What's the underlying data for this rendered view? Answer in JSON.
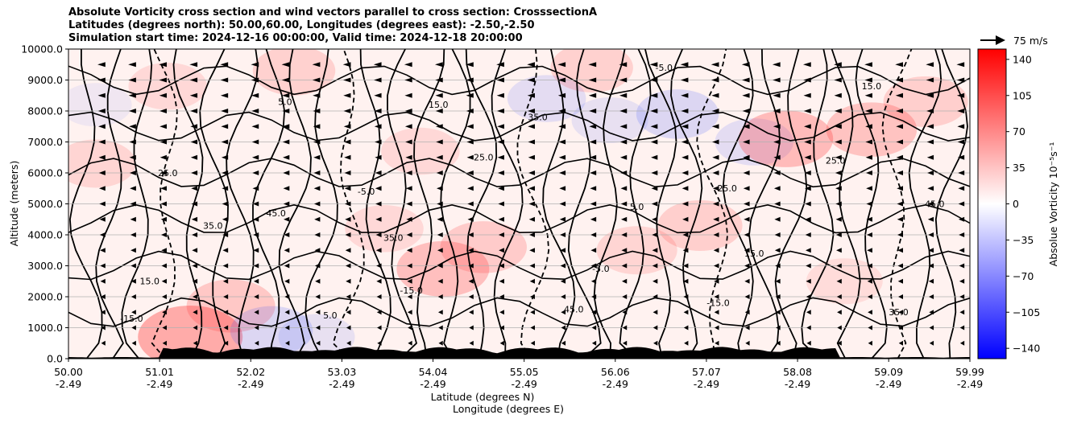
{
  "title_lines": [
    "Absolute Vorticity cross section and wind vectors parallel to cross section: CrosssectionA",
    "Latitudes (degrees north): 50.00,60.00, Longitudes (degrees east): -2.50,-2.50",
    "Simulation start time: 2024-12-16 00:00:00, Valid time: 2024-12-18 20:00:00"
  ],
  "chart_data": {
    "type": "heatmap",
    "ylabel": "Altitude (meters)",
    "xlabel_lines": [
      "Latitude (degrees N)",
      "Longitude (degrees E)"
    ],
    "ylim": [
      0,
      10000
    ],
    "y_ticks": [
      0,
      1000,
      2000,
      3000,
      4000,
      5000,
      6000,
      7000,
      8000,
      9000,
      10000
    ],
    "y_tick_labels": [
      "0.0",
      "1000.0",
      "2000.0",
      "3000.0",
      "4000.0",
      "5000.0",
      "6000.0",
      "7000.0",
      "8000.0",
      "9000.0",
      "10000.0"
    ],
    "x_tick_lat": [
      "50.00",
      "51.01",
      "52.02",
      "53.03",
      "54.04",
      "55.05",
      "56.06",
      "57.07",
      "58.08",
      "59.09",
      "59.99"
    ],
    "x_tick_lon": [
      "-2.49",
      "-2.49",
      "-2.49",
      "-2.49",
      "-2.49",
      "-2.49",
      "-2.49",
      "-2.49",
      "-2.49",
      "-2.49",
      "-2.49"
    ],
    "grid": true,
    "colorbar": {
      "label": "Absolue Vorticity 10⁻⁵s⁻¹",
      "range": [
        -150,
        150
      ],
      "ticks": [
        140,
        105,
        70,
        35,
        0,
        -35,
        -70,
        -105,
        -140
      ],
      "tick_labels": [
        "140",
        "105",
        "70",
        "35",
        "0",
        "−35",
        "−70",
        "−105",
        "−140"
      ],
      "colors": [
        "#0000ff",
        "#ffffff",
        "#ff0000"
      ]
    },
    "quiver_key": "75 m/s",
    "contour_labels": [
      "15.0",
      "25.0",
      "35.0",
      "45.0",
      "5.0",
      "-5.0",
      "-15.0"
    ],
    "vorticity_blobs": [
      {
        "lat": 51.35,
        "alt": 700,
        "value": 100
      },
      {
        "lat": 51.8,
        "alt": 1700,
        "value": 60
      },
      {
        "lat": 52.25,
        "alt": 900,
        "value": -45
      },
      {
        "lat": 52.75,
        "alt": 700,
        "value": -30
      },
      {
        "lat": 54.15,
        "alt": 2900,
        "value": 70
      },
      {
        "lat": 54.6,
        "alt": 3600,
        "value": 55
      },
      {
        "lat": 55.3,
        "alt": 8400,
        "value": -35
      },
      {
        "lat": 56.0,
        "alt": 7700,
        "value": -30
      },
      {
        "lat": 56.75,
        "alt": 7900,
        "value": -45
      },
      {
        "lat": 57.0,
        "alt": 4300,
        "value": 50
      },
      {
        "lat": 57.6,
        "alt": 7000,
        "value": -35
      },
      {
        "lat": 57.95,
        "alt": 7100,
        "value": 75
      },
      {
        "lat": 58.9,
        "alt": 7400,
        "value": 65
      },
      {
        "lat": 50.3,
        "alt": 6300,
        "value": 40
      },
      {
        "lat": 51.1,
        "alt": 8800,
        "value": 35
      },
      {
        "lat": 52.5,
        "alt": 9300,
        "value": 45
      },
      {
        "lat": 55.8,
        "alt": 9400,
        "value": 45
      },
      {
        "lat": 59.5,
        "alt": 8300,
        "value": 50
      },
      {
        "lat": 50.3,
        "alt": 8200,
        "value": -20
      },
      {
        "lat": 53.5,
        "alt": 4200,
        "value": 35
      },
      {
        "lat": 56.3,
        "alt": 3500,
        "value": 40
      },
      {
        "lat": 58.6,
        "alt": 2500,
        "value": 30
      },
      {
        "lat": 53.9,
        "alt": 6700,
        "value": 35
      }
    ]
  }
}
